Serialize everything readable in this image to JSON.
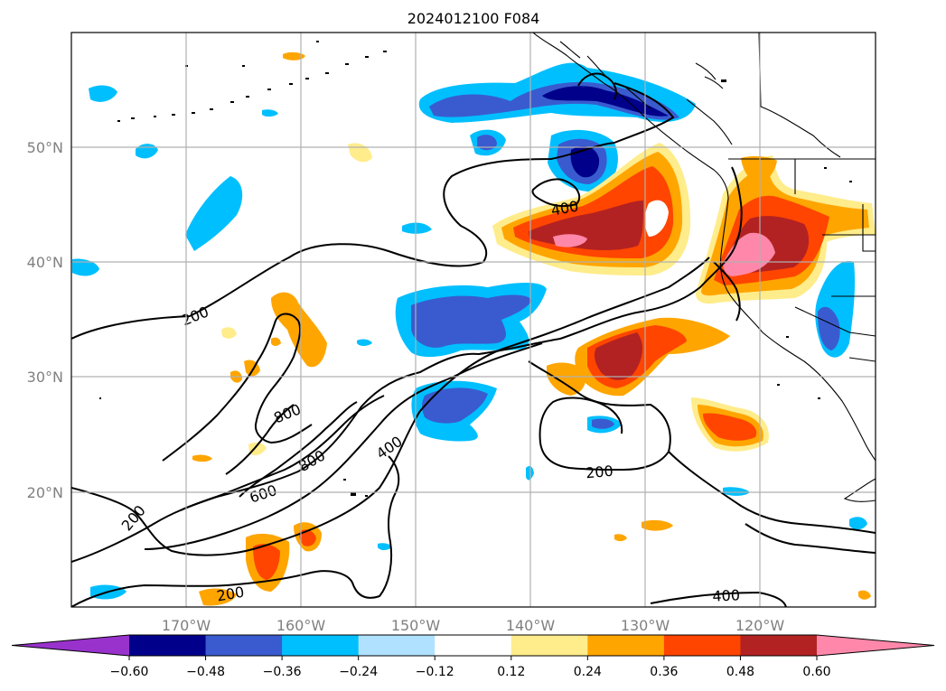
{
  "title": "2024012100 F084",
  "axes": {
    "lon_ticks": [
      "170°W",
      "160°W",
      "150°W",
      "140°W",
      "130°W",
      "120°W"
    ],
    "lat_ticks": [
      "50°N",
      "40°N",
      "30°N",
      "20°N"
    ]
  },
  "colorbar": {
    "ticks": [
      "−0.60",
      "−0.48",
      "−0.36",
      "−0.24",
      "−0.12",
      "0.12",
      "0.24",
      "0.36",
      "0.48",
      "0.60"
    ],
    "colors": [
      "#9932cc",
      "#00008b",
      "#3a5bcf",
      "#00bfff",
      "#b0e2ff",
      "#ffffff",
      "#ffec8b",
      "#ffa500",
      "#ff4500",
      "#b22222",
      "#ff88aa"
    ]
  },
  "contour_labels": [
    "200",
    "200",
    "200",
    "200",
    "400",
    "400",
    "400",
    "600",
    "800",
    "800"
  ]
}
